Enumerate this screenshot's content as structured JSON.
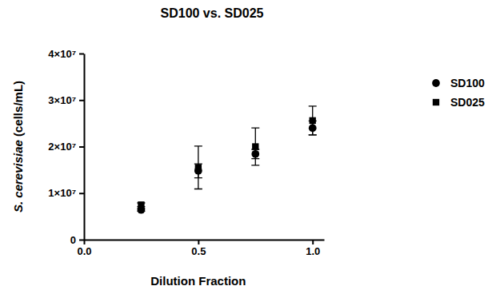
{
  "chart_data": {
    "type": "scatter",
    "title": "SD100 vs. SD025",
    "x_label": "Dilution Fraction",
    "y_label": "S. cerevisiae (cells/mL)",
    "x": [
      0.25,
      0.5,
      0.75,
      1.0
    ],
    "series": [
      {
        "name": "SD100",
        "color": "#000000",
        "marker": "circle",
        "values": [
          6400000,
          14800000,
          18400000,
          24000000
        ],
        "errors": [
          300000,
          1500000,
          1000000,
          1500000
        ]
      },
      {
        "name": "SD025",
        "color": "#000000",
        "marker": "square",
        "values": [
          7500000,
          15500000,
          20000000,
          25600000
        ],
        "errors": [
          400000,
          4600000,
          4000000,
          3100000
        ]
      }
    ],
    "xlim": [
      0,
      1.05
    ],
    "xticks": [
      {
        "value": 0,
        "label": "0.0"
      },
      {
        "value": 0.5,
        "label": "0.5"
      },
      {
        "value": 1,
        "label": "1.0"
      }
    ],
    "ylim": [
      0,
      40000000
    ],
    "yticks": [
      0,
      {
        "value": 10000000,
        "label": "1×10⁷"
      },
      {
        "value": 20000000,
        "label": "2×10⁷"
      },
      {
        "value": 30000000,
        "label": "3×10⁷"
      },
      {
        "value": 40000000,
        "label": "4×10⁷"
      }
    ],
    "grid": false,
    "legend": "right"
  }
}
